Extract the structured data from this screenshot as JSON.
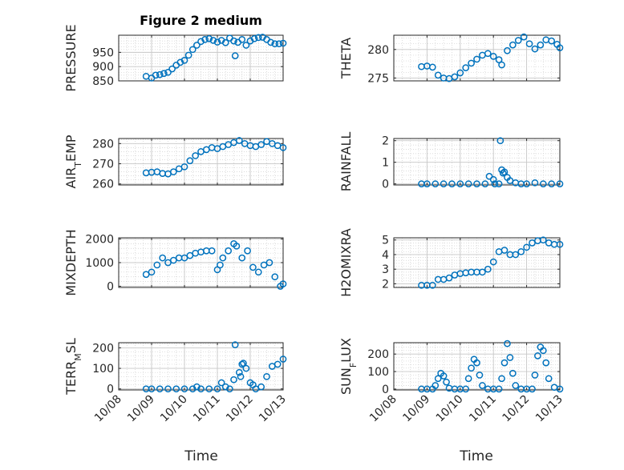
{
  "figure": {
    "title": "Figure 2 medium",
    "xlabel": "Time",
    "x_tick_labels": [
      "10/08",
      "10/09",
      "10/10",
      "10/11",
      "10/12",
      "10/13"
    ],
    "marker_color": "#0072BD"
  },
  "chart_data": [
    {
      "type": "scatter",
      "title": "Figure 2 medium",
      "ylabel": "PRESSURE",
      "ylim": [
        850,
        1010
      ],
      "yticks": [
        850,
        900,
        950
      ],
      "grid": true,
      "x": [
        "10/08 20:00",
        "10/09 00:00",
        "10/09 03:00",
        "10/09 06:00",
        "10/09 09:00",
        "10/09 12:00",
        "10/09 15:00",
        "10/09 18:00",
        "10/09 21:00",
        "10/10 00:00",
        "10/10 03:00",
        "10/10 06:00",
        "10/10 09:00",
        "10/10 12:00",
        "10/10 15:00",
        "10/10 18:00",
        "10/10 21:00",
        "10/11 00:00",
        "10/11 03:00",
        "10/11 06:00",
        "10/11 09:00",
        "10/11 12:00",
        "10/11 13:00",
        "10/11 15:00",
        "10/11 18:00",
        "10/11 21:00",
        "10/12 00:00",
        "10/12 03:00",
        "10/12 06:00",
        "10/12 09:00",
        "10/12 12:00",
        "10/12 15:00",
        "10/12 18:00",
        "10/12 21:00",
        "10/13 00:00"
      ],
      "y": [
        866,
        860,
        870,
        872,
        876,
        880,
        892,
        905,
        915,
        922,
        940,
        960,
        975,
        988,
        995,
        998,
        992,
        986,
        992,
        984,
        1000,
        990,
        938,
        985,
        995,
        975,
        990,
        998,
        1002,
        1003,
        995,
        985,
        980,
        980,
        982
      ]
    },
    {
      "type": "scatter",
      "ylabel": "THETA",
      "ylim": [
        274.5,
        282.5
      ],
      "yticks": [
        275,
        280
      ],
      "grid": true,
      "x": [
        "10/08 20:00",
        "10/09 00:00",
        "10/09 04:00",
        "10/09 08:00",
        "10/09 12:00",
        "10/09 16:00",
        "10/09 20:00",
        "10/10 00:00",
        "10/10 04:00",
        "10/10 08:00",
        "10/10 12:00",
        "10/10 16:00",
        "10/10 20:00",
        "10/11 00:00",
        "10/11 04:00",
        "10/11 06:00",
        "10/11 10:00",
        "10/11 14:00",
        "10/11 18:00",
        "10/11 22:00",
        "10/12 02:00",
        "10/12 06:00",
        "10/12 10:00",
        "10/12 14:00",
        "10/12 18:00",
        "10/12 22:00",
        "10/13 00:00"
      ],
      "y": [
        277.0,
        277.1,
        276.9,
        275.5,
        275.0,
        274.9,
        275.2,
        275.9,
        276.8,
        277.6,
        278.3,
        279.0,
        279.3,
        278.8,
        278.2,
        277.3,
        279.8,
        280.8,
        281.6,
        282.2,
        281.0,
        280.1,
        280.8,
        281.7,
        281.5,
        280.9,
        280.3
      ]
    },
    {
      "type": "scatter",
      "ylabel": "AIR_TEMP",
      "ylim": [
        259.5,
        282.5
      ],
      "yticks": [
        260,
        270,
        280
      ],
      "grid": true,
      "x": [
        "10/08 20:00",
        "10/09 00:00",
        "10/09 04:00",
        "10/09 08:00",
        "10/09 12:00",
        "10/09 16:00",
        "10/09 20:00",
        "10/10 00:00",
        "10/10 04:00",
        "10/10 08:00",
        "10/10 12:00",
        "10/10 16:00",
        "10/10 20:00",
        "10/11 00:00",
        "10/11 04:00",
        "10/11 08:00",
        "10/11 12:00",
        "10/11 16:00",
        "10/11 20:00",
        "10/12 00:00",
        "10/12 04:00",
        "10/12 08:00",
        "10/12 12:00",
        "10/12 16:00",
        "10/12 20:00",
        "10/13 00:00"
      ],
      "y": [
        265.5,
        265.8,
        266.0,
        265.2,
        265.0,
        266.0,
        267.5,
        268.5,
        271.5,
        274.0,
        276.0,
        277.0,
        278.0,
        277.5,
        278.5,
        279.5,
        280.5,
        281.5,
        280.0,
        279.0,
        278.5,
        279.5,
        281.0,
        280.0,
        279.0,
        278.0
      ]
    },
    {
      "type": "scatter",
      "ylabel": "RAINFALL",
      "ylim": [
        -0.05,
        2.1
      ],
      "yticks": [
        0,
        1,
        2
      ],
      "grid": true,
      "x": [
        "10/08 20:00",
        "10/09 00:00",
        "10/09 06:00",
        "10/09 12:00",
        "10/09 18:00",
        "10/10 00:00",
        "10/10 06:00",
        "10/10 12:00",
        "10/10 18:00",
        "10/10 21:00",
        "10/11 00:00",
        "10/11 01:00",
        "10/11 04:00",
        "10/11 05:00",
        "10/11 06:00",
        "10/11 07:00",
        "10/11 08:00",
        "10/11 10:00",
        "10/11 12:00",
        "10/11 16:00",
        "10/11 20:00",
        "10/12 00:00",
        "10/12 06:00",
        "10/12 12:00",
        "10/12 18:00",
        "10/13 00:00"
      ],
      "y": [
        0,
        0,
        0,
        0,
        0,
        0,
        0,
        0,
        0,
        0.35,
        0.2,
        0,
        0,
        2.0,
        0.65,
        0.5,
        0.55,
        0.3,
        0.15,
        0.05,
        0,
        0,
        0.05,
        0,
        0,
        0
      ]
    },
    {
      "type": "scatter",
      "ylabel": "MIXDEPTH",
      "ylim": [
        -50,
        2050
      ],
      "yticks": [
        0,
        1000,
        2000
      ],
      "grid": true,
      "x": [
        "10/08 20:00",
        "10/09 00:00",
        "10/09 04:00",
        "10/09 08:00",
        "10/09 12:00",
        "10/09 16:00",
        "10/09 20:00",
        "10/10 00:00",
        "10/10 04:00",
        "10/10 08:00",
        "10/10 12:00",
        "10/10 16:00",
        "10/10 20:00",
        "10/11 00:00",
        "10/11 02:00",
        "10/11 04:00",
        "10/11 08:00",
        "10/11 12:00",
        "10/11 14:00",
        "10/11 18:00",
        "10/11 22:00",
        "10/12 02:00",
        "10/12 06:00",
        "10/12 10:00",
        "10/12 14:00",
        "10/12 18:00",
        "10/12 22:00",
        "10/13 00:00"
      ],
      "y": [
        500,
        600,
        900,
        1200,
        1000,
        1100,
        1200,
        1200,
        1300,
        1400,
        1450,
        1500,
        1500,
        700,
        900,
        1200,
        1500,
        1800,
        1700,
        1200,
        1500,
        800,
        600,
        900,
        1000,
        400,
        0,
        100
      ]
    },
    {
      "type": "scatter",
      "ylabel": "H2OMIXRA",
      "ylim": [
        1.75,
        5.15
      ],
      "yticks": [
        2,
        3,
        4,
        5
      ],
      "grid": true,
      "x": [
        "10/08 20:00",
        "10/09 00:00",
        "10/09 04:00",
        "10/09 08:00",
        "10/09 12:00",
        "10/09 16:00",
        "10/09 20:00",
        "10/10 00:00",
        "10/10 04:00",
        "10/10 08:00",
        "10/10 12:00",
        "10/10 16:00",
        "10/10 20:00",
        "10/11 00:00",
        "10/11 04:00",
        "10/11 08:00",
        "10/11 12:00",
        "10/11 16:00",
        "10/11 20:00",
        "10/12 00:00",
        "10/12 04:00",
        "10/12 08:00",
        "10/12 12:00",
        "10/12 16:00",
        "10/12 20:00",
        "10/13 00:00"
      ],
      "y": [
        1.9,
        1.9,
        1.9,
        2.3,
        2.3,
        2.4,
        2.6,
        2.7,
        2.75,
        2.8,
        2.8,
        2.8,
        3.0,
        3.5,
        4.2,
        4.3,
        4.0,
        4.0,
        4.2,
        4.5,
        4.8,
        4.95,
        5.0,
        4.8,
        4.7,
        4.7
      ]
    },
    {
      "type": "scatter",
      "ylabel": "TERR_MSL",
      "ylim": [
        -5,
        225
      ],
      "yticks": [
        0,
        100,
        200
      ],
      "grid": true,
      "x": [
        "10/08 20:00",
        "10/09 00:00",
        "10/09 06:00",
        "10/09 12:00",
        "10/09 18:00",
        "10/10 00:00",
        "10/10 06:00",
        "10/10 09:00",
        "10/10 12:00",
        "10/10 18:00",
        "10/11 00:00",
        "10/11 03:00",
        "10/11 06:00",
        "10/11 09:00",
        "10/11 12:00",
        "10/11 13:00",
        "10/11 16:00",
        "10/11 17:00",
        "10/11 18:00",
        "10/11 19:00",
        "10/11 21:00",
        "10/12 00:00",
        "10/12 02:00",
        "10/12 04:00",
        "10/12 08:00",
        "10/12 12:00",
        "10/12 16:00",
        "10/12 20:00",
        "10/13 00:00"
      ],
      "y": [
        0,
        0,
        0,
        0,
        0,
        0,
        0,
        10,
        0,
        0,
        0,
        30,
        10,
        0,
        45,
        215,
        80,
        60,
        120,
        125,
        100,
        30,
        20,
        0,
        10,
        60,
        110,
        120,
        145
      ]
    },
    {
      "type": "scatter",
      "ylabel": "SUN_FLUX",
      "ylim": [
        -5,
        265
      ],
      "yticks": [
        0,
        100,
        200
      ],
      "grid": true,
      "x": [
        "10/08 20:00",
        "10/09 00:00",
        "10/09 04:00",
        "10/09 06:00",
        "10/09 08:00",
        "10/09 10:00",
        "10/09 12:00",
        "10/09 14:00",
        "10/09 16:00",
        "10/09 20:00",
        "10/10 00:00",
        "10/10 04:00",
        "10/10 06:00",
        "10/10 08:00",
        "10/10 10:00",
        "10/10 12:00",
        "10/10 14:00",
        "10/10 16:00",
        "10/10 20:00",
        "10/11 00:00",
        "10/11 04:00",
        "10/11 06:00",
        "10/11 08:00",
        "10/11 10:00",
        "10/11 12:00",
        "10/11 14:00",
        "10/11 16:00",
        "10/11 20:00",
        "10/12 00:00",
        "10/12 04:00",
        "10/12 06:00",
        "10/12 08:00",
        "10/12 10:00",
        "10/12 12:00",
        "10/12 14:00",
        "10/12 16:00",
        "10/12 20:00",
        "10/13 00:00"
      ],
      "y": [
        0,
        0,
        0,
        20,
        60,
        90,
        75,
        40,
        5,
        0,
        0,
        0,
        60,
        120,
        170,
        150,
        80,
        20,
        0,
        0,
        0,
        60,
        150,
        260,
        180,
        90,
        20,
        0,
        0,
        0,
        80,
        190,
        240,
        220,
        150,
        60,
        10,
        0
      ]
    }
  ]
}
